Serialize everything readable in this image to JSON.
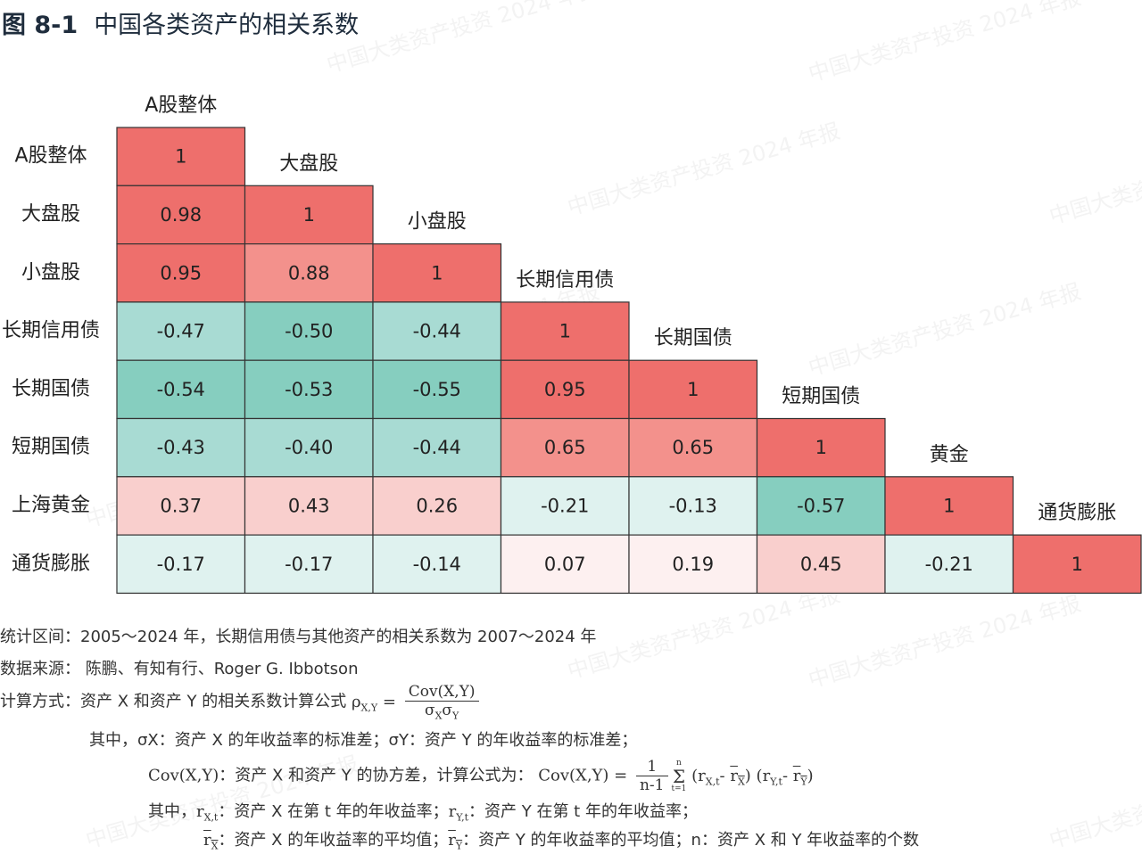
{
  "figure": {
    "number": "图 8-1",
    "title": "中国各类资产的相关系数"
  },
  "watermark": "中国大类资产投资 2024 年报",
  "colors": {
    "high": "#ee6f6c",
    "mid_positive": "#f3918c",
    "low_positive": "#f9cfcd",
    "near_zero": "#fdf0f0",
    "negative_light": "#dff2ef",
    "negative": "#a8dbd3",
    "negative_strong": "#86cebf",
    "grid": "#333333"
  },
  "chart_data": {
    "type": "heatmap",
    "title": "中国各类资产的相关系数",
    "labels": [
      "A股整体",
      "大盘股",
      "小盘股",
      "长期信用债",
      "长期国债",
      "短期国债",
      "上海黄金",
      "通货膨胀"
    ],
    "column_labels": [
      "A股整体",
      "大盘股",
      "小盘股",
      "长期信用债",
      "长期国债",
      "短期国债",
      "黄金",
      "通货膨胀"
    ],
    "matrix": [
      [
        1
      ],
      [
        0.98,
        1
      ],
      [
        0.95,
        0.88,
        1
      ],
      [
        -0.47,
        -0.5,
        -0.44,
        1
      ],
      [
        -0.54,
        -0.53,
        -0.55,
        0.95,
        1
      ],
      [
        -0.43,
        -0.4,
        -0.44,
        0.65,
        0.65,
        1
      ],
      [
        0.37,
        0.43,
        0.26,
        -0.21,
        -0.13,
        -0.57,
        1
      ],
      [
        -0.17,
        -0.17,
        -0.14,
        0.07,
        0.19,
        0.45,
        -0.21,
        1
      ]
    ],
    "display": [
      [
        "1"
      ],
      [
        "0.98",
        "1"
      ],
      [
        "0.95",
        "0.88",
        "1"
      ],
      [
        "-0.47",
        "-0.50",
        "-0.44",
        "1"
      ],
      [
        "-0.54",
        "-0.53",
        "-0.55",
        "0.95",
        "1"
      ],
      [
        "-0.43",
        "-0.40",
        "-0.44",
        "0.65",
        "0.65",
        "1"
      ],
      [
        "0.37",
        "0.43",
        "0.26",
        "-0.21",
        "-0.13",
        "-0.57",
        "1"
      ],
      [
        "-0.17",
        "-0.17",
        "-0.14",
        "0.07",
        "0.19",
        "0.45",
        "-0.21",
        "1"
      ]
    ],
    "shape": "lower-triangle"
  },
  "notes": {
    "period": "统计区间：2005～2024 年，长期信用债与其他资产的相关系数为 2007～2024 年",
    "source": "数据来源： 陈鹏、有知有行、Roger G. Ibbotson",
    "formula_label": "计算方式：资产 X 和资产 Y 的相关系数计算公式",
    "rho": "ρ",
    "rho_sub": "X,Y",
    "equals": "=",
    "cov_num": "Cov(X,Y)",
    "cov_den": "σ",
    "den_sub_x": "X",
    "den_sub_y": "Y",
    "where1_prefix": "其中，",
    "sigma_x": "σX",
    "sigma_x_desc": "：资产 X 的年收益率的标准差；",
    "sigma_y": "σY",
    "sigma_y_desc": "：资产 Y 的年收益率的标准差；",
    "cov_term": "Cov(X,Y)",
    "cov_desc": "：资产 X 和资产 Y 的协方差，计算公式为：",
    "cov_formula_lhs": "Cov(X,Y) =",
    "frac_top": "1",
    "frac_bot": "n-1",
    "sum_sym": "Σ",
    "sum_upper": "n",
    "sum_lower": "t=1",
    "cov_formula_rhs": "(r",
    "r": "r",
    "sub_xt": "X,t",
    "sub_yt": "Y,t",
    "sub_x": "X",
    "sub_y": "Y",
    "where2_prefix": "其中，",
    "rxt_desc": "：资产 X 在第 t 年的年收益率；",
    "ryt_desc": "：资产 Y 在第 t 年的年收益率；",
    "rx_mean_desc": "：资产 X 的年收益率的平均值；",
    "ry_mean_desc": "：资产 Y 的年收益率的平均值；",
    "n_term": "n",
    "n_desc": "：资产 X 和 Y 年收益率的个数"
  }
}
